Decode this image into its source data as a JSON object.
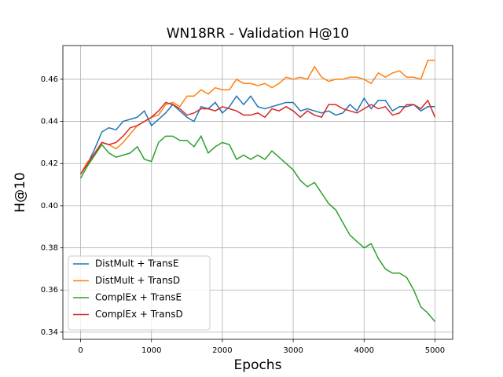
{
  "chart_data": {
    "type": "line",
    "title": "WN18RR - Validation H@10",
    "x_label": "Epochs",
    "y_label": "H@10",
    "x": [
      0,
      100,
      200,
      300,
      400,
      500,
      600,
      700,
      800,
      900,
      1000,
      1100,
      1200,
      1300,
      1400,
      1500,
      1600,
      1700,
      1800,
      1900,
      2000,
      2100,
      2200,
      2300,
      2400,
      2500,
      2600,
      2700,
      2800,
      2900,
      3000,
      3100,
      3200,
      3300,
      3400,
      3500,
      3600,
      3700,
      3800,
      3900,
      4000,
      4100,
      4200,
      4300,
      4400,
      4500,
      4600,
      4700,
      4800,
      4900,
      5000
    ],
    "series": [
      {
        "name": "DistMult + TransE",
        "color": "#1f77b4",
        "values": [
          0.415,
          0.42,
          0.427,
          0.435,
          0.437,
          0.436,
          0.44,
          0.441,
          0.442,
          0.445,
          0.438,
          0.441,
          0.444,
          0.448,
          0.445,
          0.442,
          0.44,
          0.447,
          0.446,
          0.449,
          0.444,
          0.447,
          0.452,
          0.448,
          0.452,
          0.447,
          0.446,
          0.447,
          0.448,
          0.449,
          0.449,
          0.445,
          0.446,
          0.445,
          0.444,
          0.445,
          0.443,
          0.444,
          0.448,
          0.445,
          0.451,
          0.446,
          0.45,
          0.45,
          0.445,
          0.447,
          0.447,
          0.448,
          0.445,
          0.447,
          0.447
        ]
      },
      {
        "name": "DistMult + TransD",
        "color": "#ff7f0e",
        "values": [
          0.415,
          0.421,
          0.424,
          0.43,
          0.429,
          0.427,
          0.43,
          0.434,
          0.438,
          0.44,
          0.442,
          0.443,
          0.448,
          0.449,
          0.447,
          0.452,
          0.452,
          0.455,
          0.453,
          0.456,
          0.455,
          0.455,
          0.46,
          0.458,
          0.458,
          0.457,
          0.458,
          0.456,
          0.458,
          0.461,
          0.46,
          0.461,
          0.46,
          0.466,
          0.461,
          0.459,
          0.46,
          0.46,
          0.461,
          0.461,
          0.46,
          0.458,
          0.463,
          0.461,
          0.463,
          0.464,
          0.461,
          0.461,
          0.46,
          0.469,
          0.469
        ]
      },
      {
        "name": "ComplEx + TransE",
        "color": "#2ca02c",
        "values": [
          0.413,
          0.419,
          0.424,
          0.429,
          0.425,
          0.423,
          0.424,
          0.425,
          0.428,
          0.422,
          0.421,
          0.43,
          0.433,
          0.433,
          0.431,
          0.431,
          0.428,
          0.433,
          0.425,
          0.428,
          0.43,
          0.429,
          0.422,
          0.424,
          0.422,
          0.424,
          0.422,
          0.426,
          0.423,
          0.42,
          0.417,
          0.412,
          0.409,
          0.411,
          0.406,
          0.401,
          0.398,
          0.392,
          0.386,
          0.383,
          0.38,
          0.382,
          0.375,
          0.37,
          0.368,
          0.368,
          0.366,
          0.36,
          0.352,
          0.349,
          0.345
        ]
      },
      {
        "name": "ComplEx + TransD",
        "color": "#d62728",
        "values": [
          0.415,
          0.42,
          0.425,
          0.43,
          0.429,
          0.43,
          0.433,
          0.437,
          0.438,
          0.44,
          0.442,
          0.445,
          0.449,
          0.448,
          0.446,
          0.443,
          0.444,
          0.446,
          0.446,
          0.445,
          0.447,
          0.446,
          0.445,
          0.443,
          0.443,
          0.444,
          0.442,
          0.446,
          0.445,
          0.447,
          0.445,
          0.442,
          0.445,
          0.443,
          0.442,
          0.448,
          0.448,
          0.446,
          0.445,
          0.444,
          0.446,
          0.448,
          0.446,
          0.447,
          0.443,
          0.444,
          0.448,
          0.448,
          0.446,
          0.45,
          0.442
        ]
      }
    ],
    "xlim": [
      -250,
      5250
    ],
    "ylim": [
      0.3366,
      0.476
    ],
    "xticks": [
      0,
      1000,
      2000,
      3000,
      4000,
      5000
    ],
    "yticks": [
      0.34,
      0.36,
      0.38,
      {
        "value": 0.4,
        "label": "0.40"
      },
      0.42,
      0.44,
      0.46
    ],
    "grid": true,
    "legend": "lower left"
  }
}
